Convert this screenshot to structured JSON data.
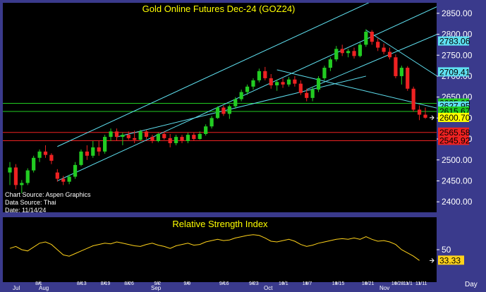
{
  "chart_data": [
    {
      "type": "candlestick",
      "title": "Gold Online Futures Dec-24 (GOZ24)",
      "x_axis_labels": [
        "8/1",
        "8/13",
        "8/19",
        "8/26",
        "9/2",
        "9/9",
        "9/16",
        "9/23",
        "10/1",
        "10/7",
        "10/15",
        "10/21",
        "10/28",
        "11/1",
        "11/11"
      ],
      "month_labels": [
        "Jul",
        "Aug",
        "Sep",
        "Oct",
        "Nov"
      ],
      "y_ticks": [
        2400,
        2450,
        2500,
        2550,
        2600,
        2650,
        2700,
        2750,
        2800,
        2850
      ],
      "ylim": [
        2375,
        2875
      ],
      "price_labels": [
        {
          "text": "2783.06",
          "value": 2783.06,
          "color": "#5fe0f0"
        },
        {
          "text": "2709.41",
          "value": 2709.41,
          "color": "#5fe0f0"
        },
        {
          "text": "2635.00",
          "value": 2635.0,
          "color": "#22cc22"
        },
        {
          "text": "2627.95",
          "value": 2627.95,
          "color": "#5fe0f0"
        },
        {
          "text": "2615.67",
          "value": 2615.67,
          "color": "#22cc22"
        },
        {
          "text": "2600.70",
          "value": 2600.7,
          "color": "#ffff00"
        },
        {
          "text": "2565.58",
          "value": 2565.58,
          "color": "#ee2222"
        },
        {
          "text": "2545.92",
          "value": 2545.92,
          "color": "#ee2222"
        }
      ],
      "horizontal_lines": [
        {
          "value": 2635.0,
          "color": "#22cc22"
        },
        {
          "value": 2615.67,
          "color": "#22cc22"
        },
        {
          "value": 2565.58,
          "color": "#ee2222"
        },
        {
          "value": 2545.92,
          "color": "#ee2222"
        }
      ],
      "candles": [
        {
          "o": 2470,
          "h": 2495,
          "l": 2440,
          "c": 2482
        },
        {
          "o": 2482,
          "h": 2490,
          "l": 2430,
          "c": 2440
        },
        {
          "o": 2440,
          "h": 2452,
          "l": 2420,
          "c": 2445
        },
        {
          "o": 2445,
          "h": 2480,
          "l": 2440,
          "c": 2475
        },
        {
          "o": 2475,
          "h": 2510,
          "l": 2470,
          "c": 2505
        },
        {
          "o": 2505,
          "h": 2525,
          "l": 2495,
          "c": 2520
        },
        {
          "o": 2520,
          "h": 2535,
          "l": 2505,
          "c": 2512
        },
        {
          "o": 2512,
          "h": 2516,
          "l": 2490,
          "c": 2498
        },
        {
          "o": 2470,
          "h": 2478,
          "l": 2448,
          "c": 2455
        },
        {
          "o": 2455,
          "h": 2462,
          "l": 2440,
          "c": 2448
        },
        {
          "o": 2448,
          "h": 2465,
          "l": 2442,
          "c": 2460
        },
        {
          "o": 2460,
          "h": 2495,
          "l": 2455,
          "c": 2488
        },
        {
          "o": 2488,
          "h": 2525,
          "l": 2485,
          "c": 2520
        },
        {
          "o": 2520,
          "h": 2535,
          "l": 2500,
          "c": 2510
        },
        {
          "o": 2510,
          "h": 2545,
          "l": 2505,
          "c": 2530
        },
        {
          "o": 2530,
          "h": 2545,
          "l": 2510,
          "c": 2520
        },
        {
          "o": 2520,
          "h": 2560,
          "l": 2515,
          "c": 2555
        },
        {
          "o": 2555,
          "h": 2575,
          "l": 2545,
          "c": 2568
        },
        {
          "o": 2568,
          "h": 2575,
          "l": 2545,
          "c": 2555
        },
        {
          "o": 2555,
          "h": 2565,
          "l": 2535,
          "c": 2560
        },
        {
          "o": 2560,
          "h": 2568,
          "l": 2548,
          "c": 2552
        },
        {
          "o": 2552,
          "h": 2570,
          "l": 2540,
          "c": 2548
        },
        {
          "o": 2548,
          "h": 2572,
          "l": 2545,
          "c": 2568
        },
        {
          "o": 2568,
          "h": 2572,
          "l": 2550,
          "c": 2555
        },
        {
          "o": 2555,
          "h": 2560,
          "l": 2540,
          "c": 2545
        },
        {
          "o": 2545,
          "h": 2565,
          "l": 2542,
          "c": 2562
        },
        {
          "o": 2562,
          "h": 2568,
          "l": 2548,
          "c": 2552
        },
        {
          "o": 2552,
          "h": 2562,
          "l": 2530,
          "c": 2540
        },
        {
          "o": 2540,
          "h": 2560,
          "l": 2535,
          "c": 2555
        },
        {
          "o": 2555,
          "h": 2560,
          "l": 2540,
          "c": 2545
        },
        {
          "o": 2545,
          "h": 2565,
          "l": 2540,
          "c": 2560
        },
        {
          "o": 2560,
          "h": 2565,
          "l": 2545,
          "c": 2550
        },
        {
          "o": 2550,
          "h": 2568,
          "l": 2548,
          "c": 2562
        },
        {
          "o": 2562,
          "h": 2585,
          "l": 2558,
          "c": 2580
        },
        {
          "o": 2580,
          "h": 2605,
          "l": 2575,
          "c": 2600
        },
        {
          "o": 2600,
          "h": 2628,
          "l": 2598,
          "c": 2625
        },
        {
          "o": 2625,
          "h": 2630,
          "l": 2605,
          "c": 2610
        },
        {
          "o": 2610,
          "h": 2632,
          "l": 2598,
          "c": 2628
        },
        {
          "o": 2628,
          "h": 2650,
          "l": 2622,
          "c": 2645
        },
        {
          "o": 2645,
          "h": 2668,
          "l": 2640,
          "c": 2662
        },
        {
          "o": 2662,
          "h": 2680,
          "l": 2655,
          "c": 2675
        },
        {
          "o": 2675,
          "h": 2695,
          "l": 2668,
          "c": 2690
        },
        {
          "o": 2690,
          "h": 2718,
          "l": 2685,
          "c": 2712
        },
        {
          "o": 2712,
          "h": 2722,
          "l": 2690,
          "c": 2695
        },
        {
          "o": 2695,
          "h": 2705,
          "l": 2670,
          "c": 2678
        },
        {
          "o": 2678,
          "h": 2692,
          "l": 2665,
          "c": 2686
        },
        {
          "o": 2686,
          "h": 2695,
          "l": 2672,
          "c": 2680
        },
        {
          "o": 2680,
          "h": 2698,
          "l": 2675,
          "c": 2692
        },
        {
          "o": 2692,
          "h": 2700,
          "l": 2675,
          "c": 2682
        },
        {
          "o": 2682,
          "h": 2690,
          "l": 2655,
          "c": 2660
        },
        {
          "o": 2660,
          "h": 2670,
          "l": 2640,
          "c": 2648
        },
        {
          "o": 2648,
          "h": 2675,
          "l": 2640,
          "c": 2668
        },
        {
          "o": 2668,
          "h": 2700,
          "l": 2662,
          "c": 2695
        },
        {
          "o": 2695,
          "h": 2725,
          "l": 2690,
          "c": 2720
        },
        {
          "o": 2720,
          "h": 2745,
          "l": 2712,
          "c": 2740
        },
        {
          "o": 2740,
          "h": 2772,
          "l": 2735,
          "c": 2765
        },
        {
          "o": 2765,
          "h": 2775,
          "l": 2748,
          "c": 2755
        },
        {
          "o": 2755,
          "h": 2765,
          "l": 2745,
          "c": 2760
        },
        {
          "o": 2760,
          "h": 2768,
          "l": 2742,
          "c": 2748
        },
        {
          "o": 2748,
          "h": 2780,
          "l": 2745,
          "c": 2775
        },
        {
          "o": 2775,
          "h": 2812,
          "l": 2770,
          "c": 2806
        },
        {
          "o": 2806,
          "h": 2810,
          "l": 2775,
          "c": 2782
        },
        {
          "o": 2782,
          "h": 2790,
          "l": 2760,
          "c": 2768
        },
        {
          "o": 2768,
          "h": 2778,
          "l": 2752,
          "c": 2758
        },
        {
          "o": 2758,
          "h": 2768,
          "l": 2740,
          "c": 2745
        },
        {
          "o": 2745,
          "h": 2752,
          "l": 2695,
          "c": 2700
        },
        {
          "o": 2700,
          "h": 2725,
          "l": 2680,
          "c": 2720
        },
        {
          "o": 2720,
          "h": 2724,
          "l": 2665,
          "c": 2670
        },
        {
          "o": 2670,
          "h": 2675,
          "l": 2615,
          "c": 2620
        },
        {
          "o": 2620,
          "h": 2630,
          "l": 2595,
          "c": 2608
        },
        {
          "o": 2608,
          "h": 2625,
          "l": 2598,
          "c": 2600.7
        }
      ]
    },
    {
      "type": "line",
      "title": "Relative Strength Index",
      "y_ticks": [
        50
      ],
      "ylim": [
        0,
        100
      ],
      "last_value_label": "33.33",
      "values": [
        52,
        55,
        50,
        48,
        54,
        60,
        62,
        58,
        50,
        42,
        40,
        44,
        48,
        52,
        56,
        58,
        60,
        59,
        62,
        60,
        58,
        56,
        55,
        58,
        60,
        57,
        55,
        52,
        56,
        58,
        60,
        57,
        58,
        62,
        64,
        66,
        64,
        65,
        68,
        70,
        72,
        73,
        72,
        68,
        63,
        62,
        64,
        66,
        63,
        58,
        55,
        57,
        60,
        62,
        64,
        66,
        67,
        66,
        68,
        66,
        70,
        66,
        63,
        64,
        62,
        58,
        50,
        45,
        40,
        33.33
      ]
    }
  ],
  "info_lines": [
    "Chart Source: Aspen Graphics",
    "Data Source: Thai",
    "Date: 11/14/24"
  ],
  "period_label": "Day",
  "colors": {
    "up": "#22cc22",
    "down": "#ee2222",
    "channel": "#5fe0f0",
    "rsi": "#ffd21a",
    "title": "#ffff00",
    "panel": "#000000"
  }
}
